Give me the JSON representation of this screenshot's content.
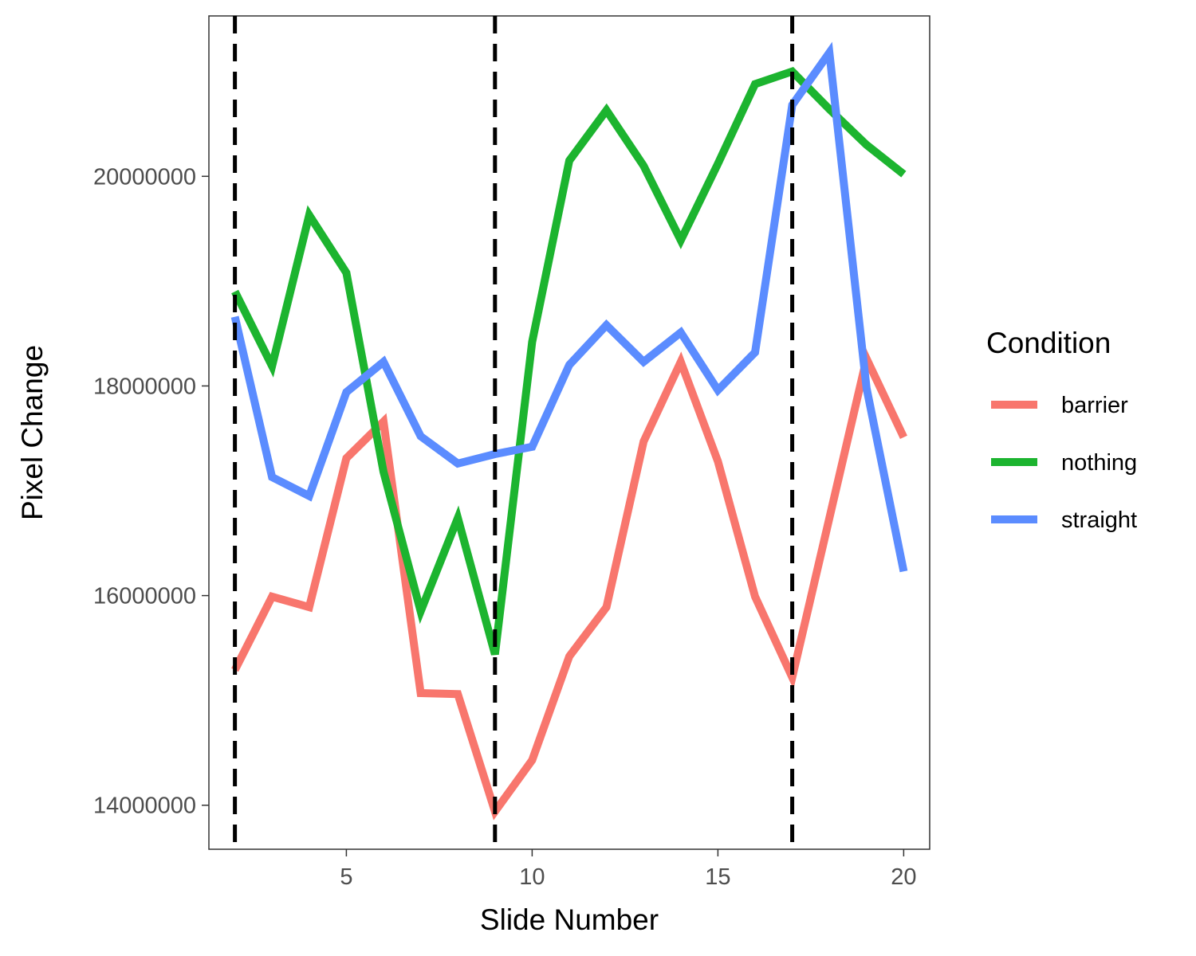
{
  "chart_data": {
    "type": "line",
    "title": "",
    "xlabel": "Slide Number",
    "ylabel": "Pixel Change",
    "xlim": [
      1.3,
      20.7
    ],
    "ylim": [
      13580000,
      21530000
    ],
    "x_ticks": [
      5,
      10,
      15,
      20
    ],
    "y_ticks": [
      14000000,
      16000000,
      18000000,
      20000000
    ],
    "x_tick_labels": [
      "5",
      "10",
      "15",
      "20"
    ],
    "y_tick_labels": [
      "14000000",
      "16000000",
      "18000000",
      "20000000"
    ],
    "grid": false,
    "legend": {
      "title": "Condition",
      "position": "right"
    },
    "vlines": [
      2,
      9,
      17
    ],
    "x": [
      2,
      3,
      4,
      5,
      6,
      7,
      8,
      9,
      10,
      11,
      12,
      13,
      14,
      15,
      16,
      17,
      18,
      19,
      20
    ],
    "series": [
      {
        "name": "barrier",
        "color": "#F8766D",
        "values": [
          15290000,
          15990000,
          15890000,
          17310000,
          17660000,
          15070000,
          15060000,
          13940000,
          14430000,
          15420000,
          15890000,
          17470000,
          18230000,
          17280000,
          15990000,
          15220000,
          16740000,
          18260000,
          17510000
        ]
      },
      {
        "name": "nothing",
        "color": "#1CB42F",
        "values": [
          18900000,
          18190000,
          19630000,
          19080000,
          17180000,
          15850000,
          16740000,
          15440000,
          18420000,
          20150000,
          20630000,
          20100000,
          19390000,
          20120000,
          20880000,
          21000000,
          20640000,
          20300000,
          20020000
        ]
      },
      {
        "name": "straight",
        "color": "#5B8CFF",
        "values": [
          18660000,
          17130000,
          16950000,
          17940000,
          18230000,
          17520000,
          17260000,
          17350000,
          17420000,
          18200000,
          18580000,
          18230000,
          18510000,
          17960000,
          18320000,
          20680000,
          21180000,
          17980000,
          16230000
        ]
      }
    ]
  }
}
